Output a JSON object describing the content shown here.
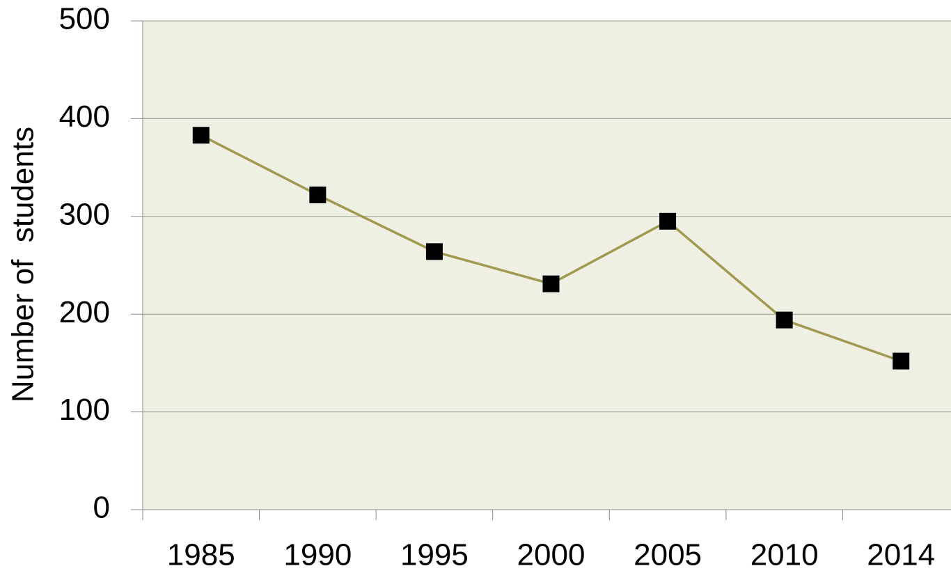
{
  "chart_data": {
    "type": "line",
    "y_label": "Number of  students",
    "categories": [
      "1985",
      "1990",
      "1995",
      "2000",
      "2005",
      "2010",
      "2014"
    ],
    "values": [
      383,
      322,
      264,
      231,
      295,
      194,
      152
    ],
    "color": "#a09a50",
    "marker_color": "#000000",
    "background": "#f0efe3",
    "ylim": [
      0,
      500
    ],
    "yticks": [
      0,
      100,
      200,
      300,
      400,
      500
    ],
    "grid": true
  }
}
